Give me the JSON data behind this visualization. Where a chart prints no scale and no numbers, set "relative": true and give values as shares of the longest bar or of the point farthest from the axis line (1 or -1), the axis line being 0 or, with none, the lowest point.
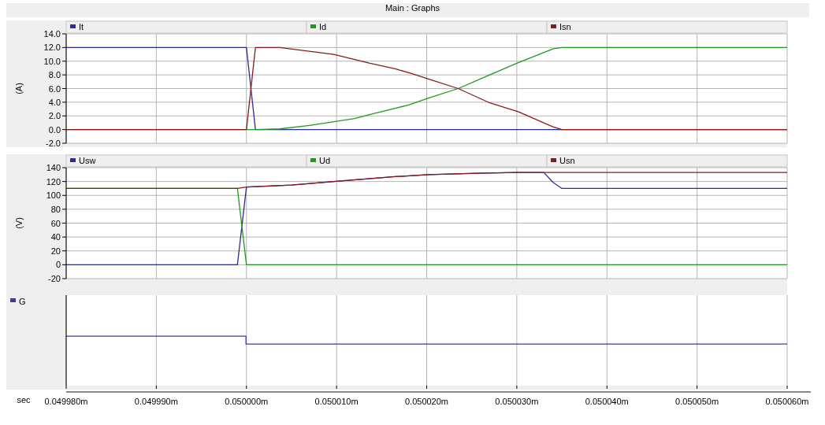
{
  "chart_data": [
    {
      "type": "line",
      "title": "Main : Graphs",
      "ylabel": "(A)",
      "xlim": [
        0.04998,
        0.05006
      ],
      "xticks": [
        {
          "value": 0.04998,
          "label": null
        },
        {
          "value": 0.04999,
          "label": null
        },
        {
          "value": 0.05,
          "label": null
        },
        {
          "value": 0.05001,
          "label": null
        },
        {
          "value": 0.05002,
          "label": null
        },
        {
          "value": 0.05003,
          "label": null
        },
        {
          "value": 0.05004,
          "label": null
        },
        {
          "value": 0.05005,
          "label": null
        },
        {
          "value": 0.05006,
          "label": null
        }
      ],
      "ylim": [
        -2,
        14
      ],
      "yticks": [
        {
          "value": -2,
          "label": "-2.0"
        },
        {
          "value": 0,
          "label": "0.0"
        },
        {
          "value": 2,
          "label": "2.0"
        },
        {
          "value": 4,
          "label": "4.0"
        },
        {
          "value": 6,
          "label": "6.0"
        },
        {
          "value": 8,
          "label": "8.0"
        },
        {
          "value": 10,
          "label": "10.0"
        },
        {
          "value": 12,
          "label": "12.0"
        },
        {
          "value": 14,
          "label": "14.0"
        }
      ],
      "grid": true,
      "legend": "top",
      "tick_labels": "y",
      "series": [
        {
          "name": "It",
          "color": "#2b2b9a",
          "x": [
            0.04998,
            0.05,
            0.050001,
            0.05006
          ],
          "values": [
            12,
            12,
            0,
            0
          ]
        },
        {
          "name": "Id",
          "color": "#1f9a1f",
          "x": [
            0.04998,
            0.050001,
            0.0500037,
            0.050007,
            0.05001,
            0.050012,
            0.050014,
            0.0500165,
            0.050018,
            0.0500202,
            0.0500235,
            0.050027,
            0.05003,
            0.050034,
            0.050035,
            0.05006
          ],
          "values": [
            0,
            0,
            0.1,
            0.6,
            1.2,
            1.6,
            2.3,
            3.1,
            3.6,
            4.6,
            6.0,
            8.0,
            9.7,
            11.8,
            12.0,
            12.0
          ]
        },
        {
          "name": "Isn",
          "color": "#8b1a1a",
          "x": [
            0.04998,
            0.05,
            0.050001,
            0.0500037,
            0.0500097,
            0.0500137,
            0.0500165,
            0.0500183,
            0.0500202,
            0.0500235,
            0.050027,
            0.0500302,
            0.050034,
            0.050035,
            0.05006
          ],
          "values": [
            0,
            0,
            12,
            12,
            11,
            9.7,
            8.9,
            8.2,
            7.4,
            6.0,
            3.9,
            2.6,
            0.4,
            0,
            0
          ]
        }
      ]
    },
    {
      "type": "line",
      "ylabel": "(V)",
      "xlim": [
        0.04998,
        0.05006
      ],
      "xticks": [
        {
          "value": 0.04998,
          "label": null
        },
        {
          "value": 0.04999,
          "label": null
        },
        {
          "value": 0.05,
          "label": null
        },
        {
          "value": 0.05001,
          "label": null
        },
        {
          "value": 0.05002,
          "label": null
        },
        {
          "value": 0.05003,
          "label": null
        },
        {
          "value": 0.05004,
          "label": null
        },
        {
          "value": 0.05005,
          "label": null
        },
        {
          "value": 0.05006,
          "label": null
        }
      ],
      "ylim": [
        -20,
        140
      ],
      "yticks": [
        -20,
        0,
        20,
        40,
        60,
        80,
        100,
        120,
        140
      ],
      "grid": true,
      "legend": "top",
      "tick_labels": "y",
      "series": [
        {
          "name": "Usw",
          "color": "#2b2b9a",
          "x": [
            0.04998,
            0.049999,
            0.05,
            0.050005,
            0.0500097,
            0.0500165,
            0.0500202,
            0.0500256,
            0.05003,
            0.050033,
            0.050034,
            0.050035,
            0.05006
          ],
          "values": [
            0,
            0,
            112,
            115,
            120,
            127,
            130,
            132,
            133,
            133,
            119,
            110,
            110
          ]
        },
        {
          "name": "Ud",
          "color": "#1f9a1f",
          "x": [
            0.04998,
            0.049999,
            0.05,
            0.05006
          ],
          "values": [
            110,
            110,
            0,
            0
          ]
        },
        {
          "name": "Usn",
          "color": "#8b1a1a",
          "x": [
            0.04998,
            0.049999,
            0.05,
            0.050005,
            0.0500097,
            0.0500165,
            0.0500202,
            0.0500256,
            0.05003,
            0.05006
          ],
          "values": [
            110,
            110,
            112,
            115,
            120,
            127,
            130,
            132,
            133,
            133
          ]
        }
      ]
    },
    {
      "type": "line",
      "xlabel": "sec",
      "xlim": [
        0.04998,
        0.05006
      ],
      "xticks": [
        {
          "value": 0.04998,
          "label": "0.049980m"
        },
        {
          "value": 0.04999,
          "label": "0.049990m"
        },
        {
          "value": 0.05,
          "label": "0.050000m"
        },
        {
          "value": 0.05001,
          "label": "0.050010m"
        },
        {
          "value": 0.05002,
          "label": "0.050020m"
        },
        {
          "value": 0.05003,
          "label": "0.050030m"
        },
        {
          "value": 0.05004,
          "label": "0.050040m"
        },
        {
          "value": 0.05005,
          "label": "0.050050m"
        },
        {
          "value": 0.05006,
          "label": "0.050060m"
        }
      ],
      "relative": true,
      "grid": "x",
      "legend": "top left",
      "tick_labels": "x",
      "series": [
        {
          "name": "G",
          "color": "#3a3aa8",
          "x": [
            0.04998,
            0.04999995,
            0.04999995,
            0.05006
          ],
          "values": [
            1,
            1,
            0.84,
            0.84
          ]
        }
      ]
    }
  ]
}
